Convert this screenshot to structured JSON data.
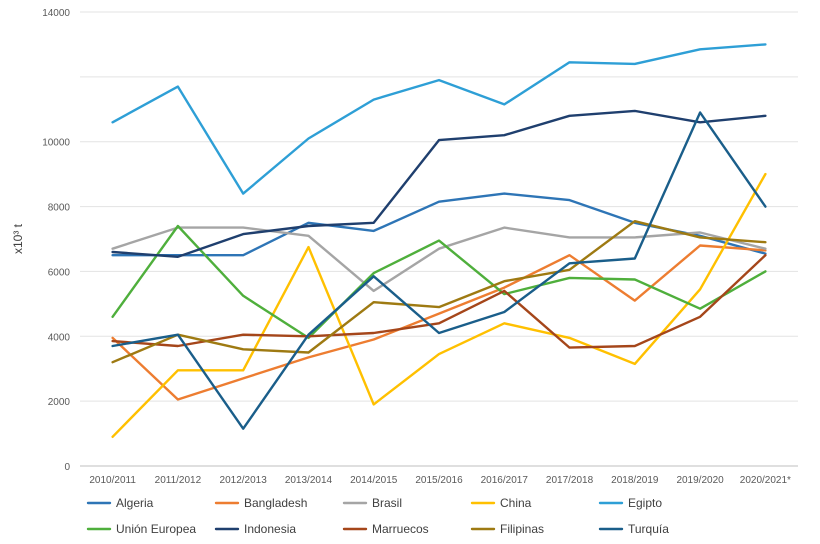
{
  "chart_data": {
    "type": "line",
    "title": "",
    "xlabel": "",
    "ylabel": "x10³ t",
    "ylim": [
      0,
      14000
    ],
    "yticks": [
      0,
      2000,
      4000,
      6000,
      8000,
      10000,
      14000
    ],
    "grid": true,
    "legend_position": "bottom",
    "categories": [
      "2010/2011",
      "2011/2012",
      "2012/2013",
      "2013/2014",
      "2014/2015",
      "2015/2016",
      "2016/2017",
      "2017/2018",
      "2018/2019",
      "2019/2020",
      "2020/2021*"
    ],
    "series": [
      {
        "name": "Algeria",
        "color": "#2E75B6",
        "values": [
          6500,
          6500,
          6500,
          7500,
          7250,
          8150,
          8400,
          8200,
          7500,
          7100,
          6550
        ]
      },
      {
        "name": "Bangladesh",
        "color": "#ED7D31",
        "values": [
          3950,
          2050,
          2700,
          3350,
          3900,
          4700,
          5500,
          6500,
          5100,
          6800,
          6650
        ]
      },
      {
        "name": "Brasil",
        "color": "#A5A5A5",
        "values": [
          6700,
          7350,
          7350,
          7100,
          5400,
          6700,
          7350,
          7050,
          7050,
          7200,
          6700
        ]
      },
      {
        "name": "China",
        "color": "#FFC000",
        "values": [
          900,
          2950,
          2950,
          6750,
          1900,
          3450,
          4400,
          3950,
          3150,
          5450,
          9000
        ]
      },
      {
        "name": "Egipto",
        "color": "#2E9FD6",
        "values": [
          10600,
          11700,
          8400,
          10100,
          11300,
          11900,
          11150,
          12450,
          12400,
          12850,
          13000
        ]
      },
      {
        "name": "Unión Europea",
        "color": "#4FAF3C",
        "values": [
          4600,
          7400,
          5250,
          3950,
          5950,
          6950,
          5300,
          5800,
          5750,
          4850,
          6000
        ]
      },
      {
        "name": "Indonesia",
        "color": "#1F3F6E",
        "values": [
          6600,
          6450,
          7150,
          7400,
          7500,
          10050,
          10200,
          10800,
          10950,
          10600,
          10800
        ]
      },
      {
        "name": "Marruecos",
        "color": "#A5461A",
        "values": [
          3850,
          3700,
          4050,
          4000,
          4100,
          4400,
          5400,
          3650,
          3700,
          4600,
          6500
        ]
      },
      {
        "name": "Filipinas",
        "color": "#9E7A12",
        "values": [
          3200,
          4050,
          3600,
          3500,
          5050,
          4900,
          5700,
          6050,
          7550,
          7050,
          6900
        ]
      },
      {
        "name": "Turquía",
        "color": "#1A5E8A",
        "values": [
          3700,
          4050,
          1150,
          4050,
          5850,
          4100,
          4750,
          6250,
          6400,
          10900,
          8000
        ]
      }
    ]
  }
}
